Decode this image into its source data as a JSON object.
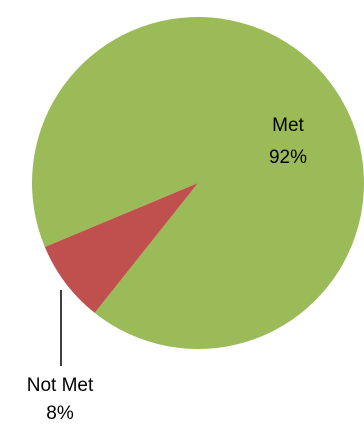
{
  "chart_data": {
    "type": "pie",
    "title": "",
    "slices": [
      {
        "label": "Met",
        "value": 92,
        "percent_label": "92%",
        "color": "#9BBB59",
        "label_position": "inside"
      },
      {
        "label": "Not Met",
        "value": 8,
        "percent_label": "8%",
        "color": "#C0504D",
        "label_position": "outside-leader"
      }
    ],
    "legend": "none"
  }
}
